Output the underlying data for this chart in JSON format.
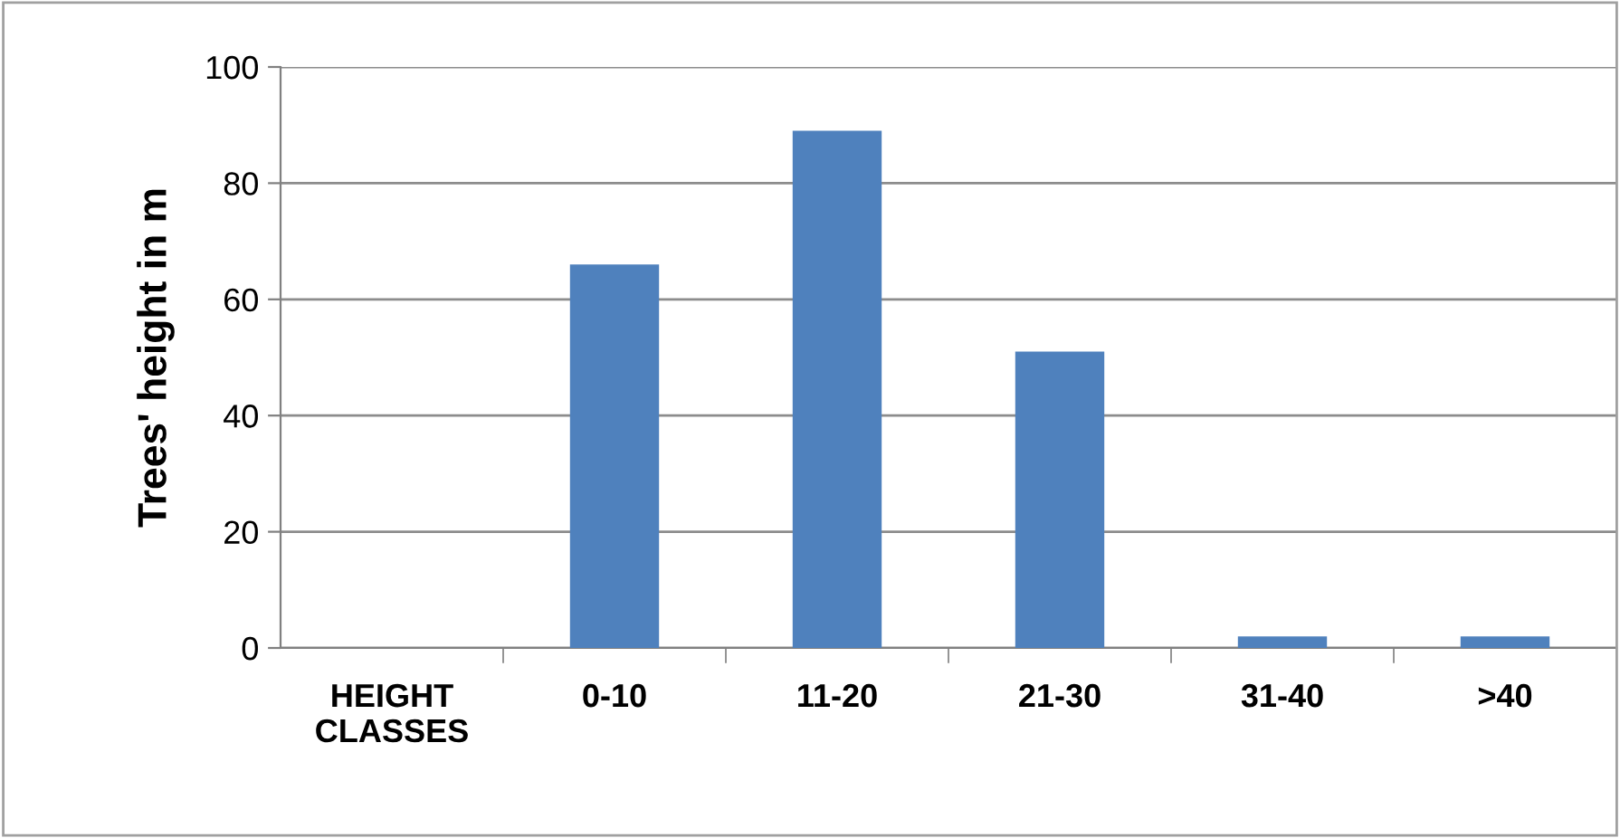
{
  "chart_data": {
    "type": "bar",
    "ylabel": "Trees' height in m",
    "categories": [
      "HEIGHT CLASSES",
      "0-10",
      "11-20",
      "21-30",
      "31-40",
      ">40"
    ],
    "values": [
      null,
      66,
      89,
      51,
      2,
      2
    ],
    "color": "#4f81bd",
    "ylim": [
      0,
      100
    ],
    "yticks": [
      0,
      20,
      40,
      60,
      80,
      100
    ],
    "grid": "y"
  }
}
